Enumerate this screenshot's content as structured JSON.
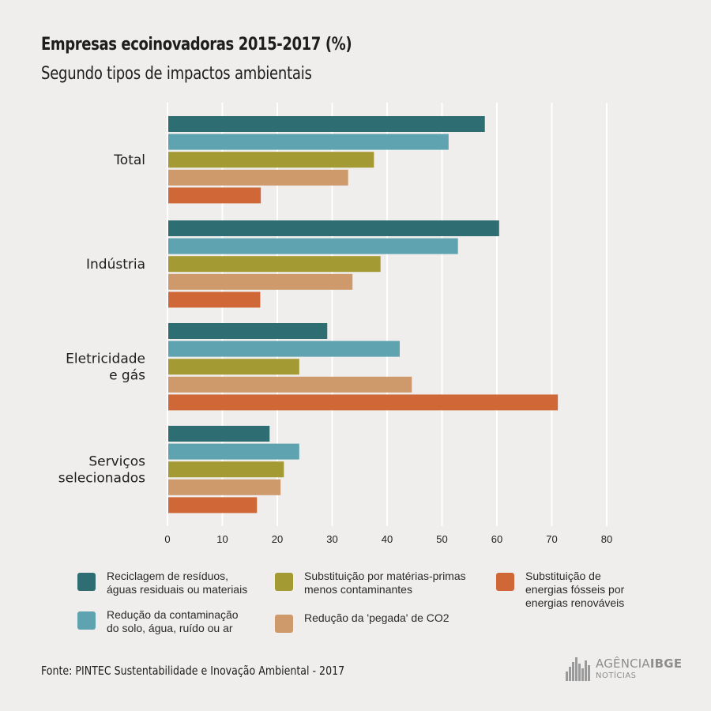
{
  "header": {
    "title": "Empresas ecoinovadoras 2015-2017 (%)",
    "subtitle": "Segundo tipos de impactos ambientais"
  },
  "chart_data": {
    "type": "bar",
    "orientation": "horizontal",
    "title": "Empresas ecoinovadoras 2015-2017 (%)",
    "subtitle": "Segundo tipos de impactos ambientais",
    "categories": [
      [
        "Total"
      ],
      [
        "Indústria"
      ],
      [
        "Eletricidade",
        "e gás"
      ],
      [
        "Serviços",
        "selecionados"
      ]
    ],
    "series": [
      {
        "name": "Reciclagem de resíduos, águas residuais ou materiais",
        "color": "#2e6d72",
        "values": [
          57.8,
          60.4,
          29.1,
          18.6
        ]
      },
      {
        "name": "Redução da contaminação do solo, água, ruído ou ar",
        "color": "#5fa3b0",
        "values": [
          51.2,
          52.9,
          42.3,
          24.0
        ]
      },
      {
        "name": "Substituição por matérias-primas menos contaminantes",
        "color": "#a39a34",
        "values": [
          37.6,
          38.8,
          24.0,
          21.2
        ]
      },
      {
        "name": "Redução da 'pegada' de CO2",
        "color": "#cf9a6b",
        "values": [
          32.9,
          33.7,
          44.5,
          20.6
        ]
      },
      {
        "name": "Substituição de energias fósseis por energias renováveis",
        "color": "#cf6836",
        "values": [
          17.0,
          16.9,
          71.1,
          16.3
        ]
      }
    ],
    "xlim": [
      0,
      80
    ],
    "xticks": [
      "0",
      "10",
      "20",
      "30",
      "40",
      "50",
      "60",
      "70",
      "80"
    ],
    "grid": true,
    "legend_position": "bottom"
  },
  "legend": [
    {
      "label": "Reciclagem de resíduos,\náguas residuais ou materiais",
      "color": "#2e6d72"
    },
    {
      "label": "Redução da contaminação\ndo solo, água, ruído ou ar",
      "color": "#5fa3b0"
    },
    {
      "label": "Substituição por matérias-primas\nmenos contaminantes",
      "color": "#a39a34"
    },
    {
      "label": "Redução da 'pegada' de CO2",
      "color": "#cf9a6b"
    },
    {
      "label": "Substituição de\nenergias fósseis por\nenergias renováveis",
      "color": "#cf6836"
    }
  ],
  "footer": {
    "source": "Fonte: PINTEC Sustentabilidade e Inovação Ambiental - 2017",
    "logo_main_light": "AGÊNCIA",
    "logo_main_bold": "IBGE",
    "logo_sub": "NOTÍCIAS"
  }
}
